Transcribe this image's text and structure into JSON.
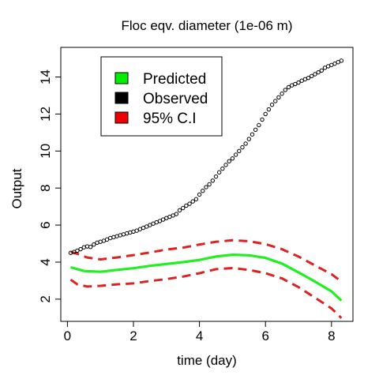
{
  "chart_data": {
    "type": "line",
    "title": "Floc eqv. diameter (1e-06 m)",
    "xlabel": "time (day)",
    "ylabel": "Output",
    "xlim": [
      -0.2,
      8.65
    ],
    "ylim": [
      0.8,
      15.6
    ],
    "xticks": [
      0,
      2,
      4,
      6,
      8
    ],
    "yticks": [
      2,
      4,
      6,
      8,
      10,
      12,
      14
    ],
    "legend": {
      "position": "top-left",
      "entries": [
        {
          "label": "Predicted",
          "color": "#00ee00"
        },
        {
          "label": "Observed",
          "color": "#000000"
        },
        {
          "label": "95% C.I",
          "color": "#ee0000"
        }
      ]
    },
    "series": [
      {
        "name": "Predicted",
        "style": "line",
        "color": "#22ee22",
        "x": [
          0.1,
          0.5,
          1.0,
          1.5,
          2.0,
          2.5,
          3.0,
          3.5,
          4.0,
          4.5,
          5.0,
          5.5,
          6.0,
          6.5,
          7.0,
          7.5,
          8.0,
          8.3
        ],
        "y": [
          3.72,
          3.52,
          3.48,
          3.58,
          3.67,
          3.8,
          3.9,
          4.0,
          4.12,
          4.3,
          4.4,
          4.37,
          4.23,
          3.92,
          3.45,
          2.95,
          2.42,
          1.92
        ]
      },
      {
        "name": "95% C.I",
        "style": "dashed",
        "color": "#dd2222",
        "x": [
          0.1,
          0.3,
          0.6,
          1.0,
          1.5,
          2.0,
          2.5,
          3.0,
          3.5,
          4.0,
          4.5,
          5.0,
          5.5,
          6.0,
          6.5,
          7.0,
          7.5,
          8.0,
          8.3
        ],
        "y": [
          4.55,
          4.45,
          4.25,
          4.15,
          4.25,
          4.38,
          4.52,
          4.68,
          4.78,
          4.95,
          5.1,
          5.18,
          5.13,
          4.97,
          4.7,
          4.3,
          3.82,
          3.35,
          2.95
        ]
      },
      {
        "name": "95% C.I lower",
        "style": "dashed",
        "color": "#dd2222",
        "x": [
          0.1,
          0.3,
          0.6,
          1.0,
          1.5,
          2.0,
          2.5,
          3.0,
          3.5,
          4.0,
          4.5,
          5.0,
          5.5,
          6.0,
          6.5,
          7.0,
          7.5,
          8.0,
          8.3
        ],
        "y": [
          3.05,
          2.8,
          2.68,
          2.72,
          2.8,
          2.85,
          2.98,
          3.08,
          3.22,
          3.4,
          3.62,
          3.68,
          3.58,
          3.4,
          3.12,
          2.65,
          2.08,
          1.5,
          0.98
        ]
      },
      {
        "name": "Observed",
        "style": "points",
        "color": "#000000",
        "x": [
          0.1,
          0.2,
          0.3,
          0.4,
          0.5,
          0.6,
          0.7,
          0.8,
          0.9,
          1.0,
          1.1,
          1.2,
          1.3,
          1.4,
          1.5,
          1.6,
          1.7,
          1.8,
          1.9,
          2.0,
          2.1,
          2.2,
          2.3,
          2.4,
          2.5,
          2.6,
          2.7,
          2.8,
          2.9,
          3.0,
          3.1,
          3.2,
          3.3,
          3.4,
          3.5,
          3.6,
          3.7,
          3.8,
          3.9,
          4.0,
          4.1,
          4.2,
          4.3,
          4.4,
          4.5,
          4.6,
          4.7,
          4.8,
          4.9,
          5.0,
          5.1,
          5.2,
          5.3,
          5.4,
          5.5,
          5.6,
          5.7,
          5.8,
          5.9,
          6.0,
          6.1,
          6.2,
          6.3,
          6.4,
          6.5,
          6.6,
          6.7,
          6.8,
          6.9,
          7.0,
          7.1,
          7.2,
          7.3,
          7.4,
          7.5,
          7.6,
          7.7,
          7.8,
          7.9,
          8.0,
          8.1,
          8.2,
          8.3
        ],
        "y": [
          4.5,
          4.55,
          4.62,
          4.7,
          4.8,
          4.85,
          4.82,
          4.95,
          5.05,
          5.1,
          5.15,
          5.22,
          5.3,
          5.35,
          5.4,
          5.45,
          5.5,
          5.55,
          5.6,
          5.65,
          5.7,
          5.78,
          5.85,
          5.92,
          6.0,
          6.08,
          6.15,
          6.22,
          6.3,
          6.38,
          6.45,
          6.52,
          6.6,
          6.8,
          6.92,
          7.05,
          7.15,
          7.28,
          7.4,
          7.65,
          7.85,
          8.05,
          8.2,
          8.4,
          8.62,
          8.85,
          9.05,
          9.25,
          9.45,
          9.6,
          9.8,
          10.0,
          10.2,
          10.4,
          10.65,
          10.9,
          11.15,
          11.4,
          11.7,
          12.0,
          12.25,
          12.5,
          12.7,
          12.9,
          13.1,
          13.3,
          13.45,
          13.55,
          13.62,
          13.7,
          13.8,
          13.88,
          13.95,
          14.05,
          14.15,
          14.25,
          14.35,
          14.5,
          14.58,
          14.65,
          14.72,
          14.8,
          14.88
        ]
      }
    ]
  }
}
